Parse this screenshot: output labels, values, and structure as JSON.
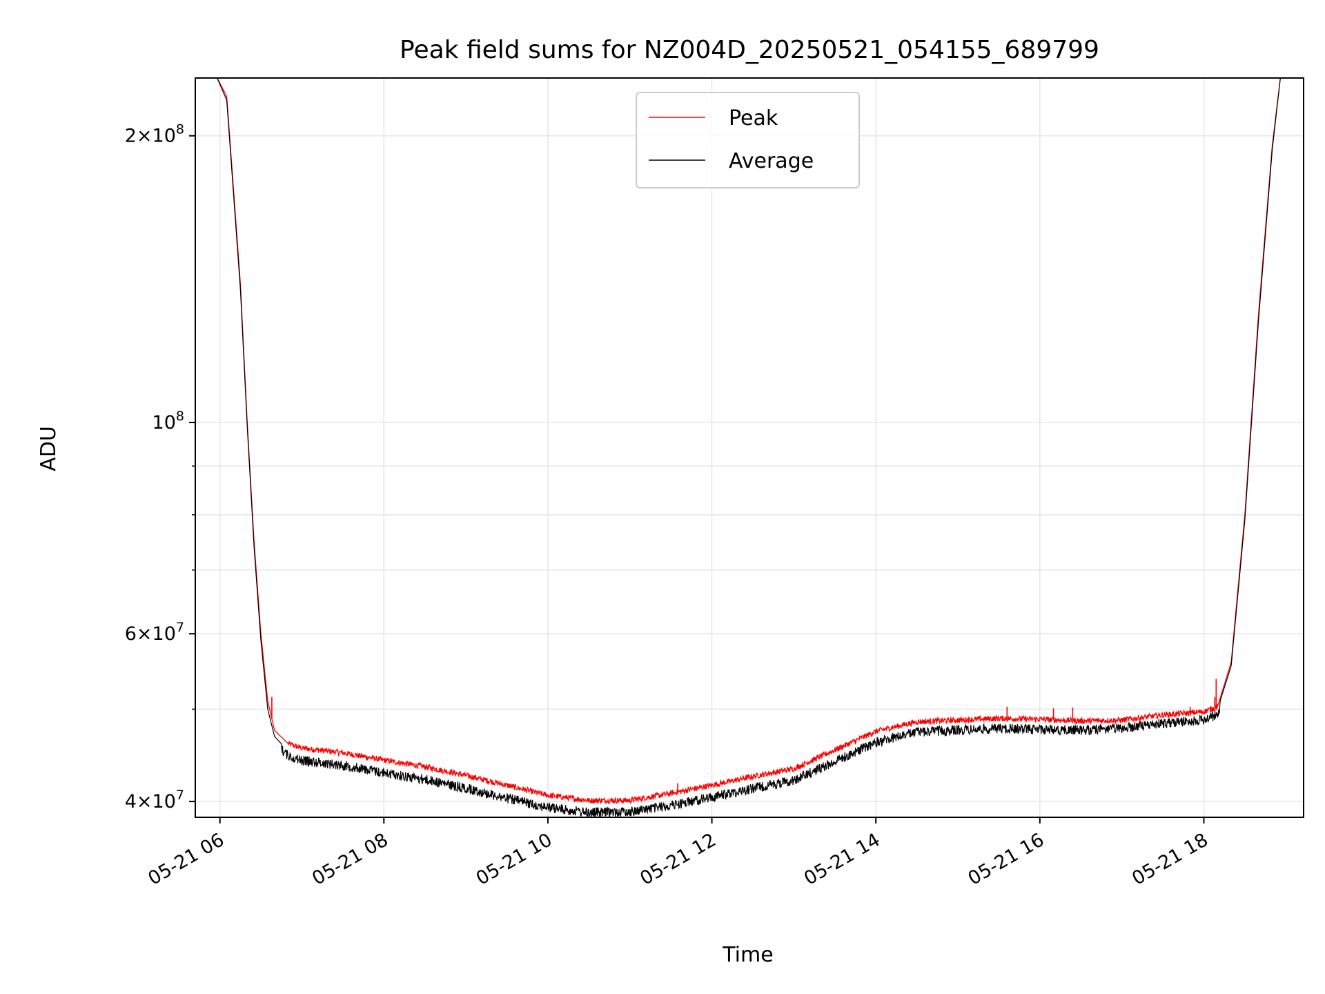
{
  "chart_data": {
    "type": "line",
    "title": "Peak field sums for NZ004D_20250521_054155_689799",
    "xlabel": "Time",
    "ylabel": "ADU",
    "x_tick_labels": [
      "05-21 06",
      "05-21 08",
      "05-21 10",
      "05-21 12",
      "05-21 14",
      "05-21 16",
      "05-21 18"
    ],
    "y_scale": "log",
    "y_tick_labels": [
      {
        "value": 40000000,
        "base": "4",
        "exp": "7"
      },
      {
        "value": 60000000,
        "base": "6",
        "exp": "7"
      },
      {
        "value": 100000000,
        "base": "",
        "exp": "8"
      },
      {
        "value": 200000000,
        "base": "2",
        "exp": "8"
      }
    ],
    "x_range": [
      "2025-05-21 05:42",
      "2025-05-21 19:13"
    ],
    "ylim": [
      38500000,
      230000000
    ],
    "grid": true,
    "legend_position": "upper center",
    "x": [
      "2025-05-21 05:58",
      "2025-05-21 06:05",
      "2025-05-21 06:15",
      "2025-05-21 06:20",
      "2025-05-21 06:25",
      "2025-05-21 06:30",
      "2025-05-21 06:35",
      "2025-05-21 06:40",
      "2025-05-21 06:50",
      "2025-05-21 07:00",
      "2025-05-21 07:30",
      "2025-05-21 08:00",
      "2025-05-21 08:30",
      "2025-05-21 09:00",
      "2025-05-21 09:30",
      "2025-05-21 10:00",
      "2025-05-21 10:30",
      "2025-05-21 11:00",
      "2025-05-21 11:30",
      "2025-05-21 12:00",
      "2025-05-21 12:30",
      "2025-05-21 13:00",
      "2025-05-21 13:30",
      "2025-05-21 14:00",
      "2025-05-21 14:30",
      "2025-05-21 15:00",
      "2025-05-21 15:30",
      "2025-05-21 16:00",
      "2025-05-21 16:30",
      "2025-05-21 17:00",
      "2025-05-21 17:30",
      "2025-05-21 18:00",
      "2025-05-21 18:10",
      "2025-05-21 18:20",
      "2025-05-21 18:30",
      "2025-05-21 18:40",
      "2025-05-21 18:50",
      "2025-05-21 18:56"
    ],
    "series": [
      {
        "name": "Peak",
        "color": "#ff0000",
        "values": [
          230000000,
          220000000,
          140000000,
          100000000,
          75000000,
          60000000,
          51000000,
          47500000,
          46000000,
          45500000,
          45000000,
          44200000,
          43500000,
          42600000,
          41600000,
          40600000,
          40100000,
          40100000,
          40800000,
          41600000,
          42500000,
          43300000,
          45300000,
          47400000,
          48500000,
          48700000,
          48900000,
          48800000,
          48600000,
          48700000,
          49300000,
          49700000,
          50300000,
          56000000,
          80000000,
          130000000,
          195000000,
          230000000
        ],
        "spikes": [
          {
            "x": "2025-05-21 06:38",
            "value": 51500000
          },
          {
            "x": "2025-05-21 11:35",
            "value": 41800000
          },
          {
            "x": "2025-05-21 15:36",
            "value": 50300000
          },
          {
            "x": "2025-05-21 16:10",
            "value": 50100000
          },
          {
            "x": "2025-05-21 16:24",
            "value": 50200000
          },
          {
            "x": "2025-05-21 17:50",
            "value": 50300000
          },
          {
            "x": "2025-05-21 18:08",
            "value": 51500000
          },
          {
            "x": "2025-05-21 18:09",
            "value": 53800000
          },
          {
            "x": "2025-05-21 18:12",
            "value": 51100000
          }
        ]
      },
      {
        "name": "Average",
        "color": "#000000",
        "values": [
          230000000,
          218000000,
          138000000,
          99000000,
          74000000,
          59000000,
          50000000,
          46800000,
          45200000,
          44700000,
          44200000,
          43400000,
          42700000,
          41800000,
          40800000,
          39900000,
          39400000,
          39500000,
          40100000,
          40900000,
          41800000,
          42600000,
          44600000,
          46700000,
          47900000,
          48100000,
          48300000,
          48200000,
          48100000,
          48300000,
          48900000,
          49300000,
          50000000,
          55500000,
          79000000,
          128000000,
          193000000,
          230000000
        ],
        "noise": 0.012
      }
    ]
  }
}
